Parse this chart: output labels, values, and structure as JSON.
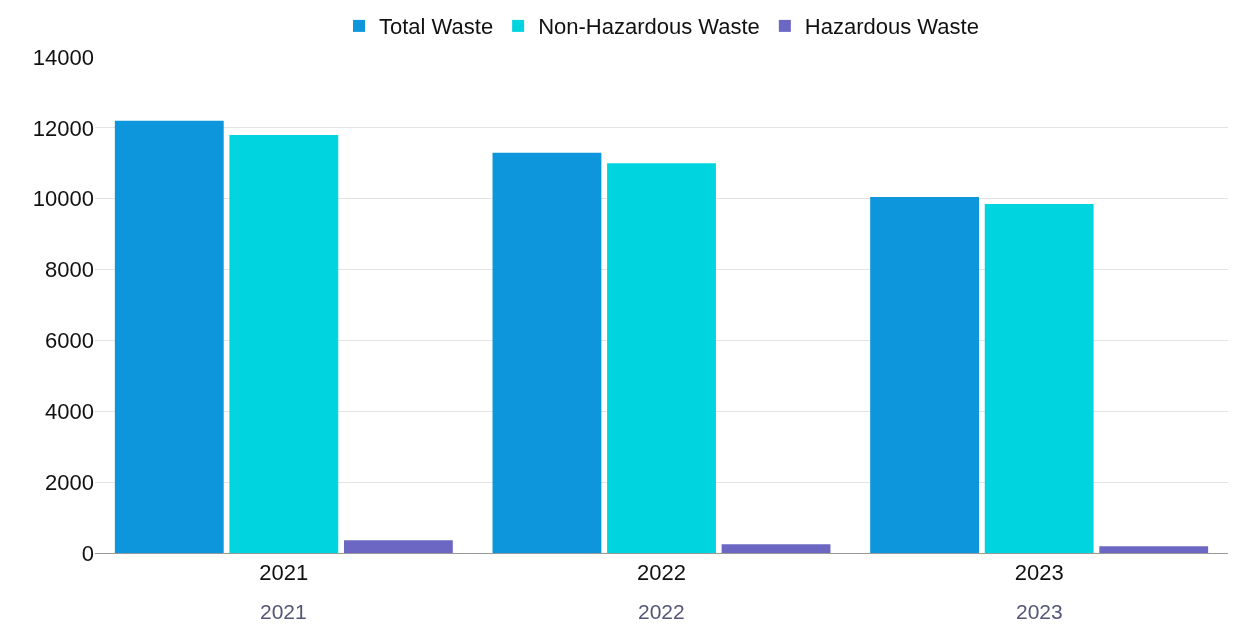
{
  "chart_data": {
    "type": "bar",
    "categories": [
      "2021",
      "2022",
      "2023"
    ],
    "series": [
      {
        "name": "Total Waste",
        "color": "#0d96db",
        "values": [
          12200,
          11300,
          10050
        ]
      },
      {
        "name": "Non-Hazardous Waste",
        "color": "#00d4de",
        "values": [
          11800,
          11000,
          9850
        ]
      },
      {
        "name": "Hazardous Waste",
        "color": "#6c67c2",
        "values": [
          360,
          250,
          190
        ]
      }
    ],
    "annotations": [
      "2021",
      "2022",
      "2023"
    ],
    "ylim": [
      0,
      14000
    ],
    "yticks": [
      0,
      2000,
      4000,
      6000,
      8000,
      10000,
      12000,
      14000
    ],
    "grid": "y",
    "legend": "top"
  }
}
